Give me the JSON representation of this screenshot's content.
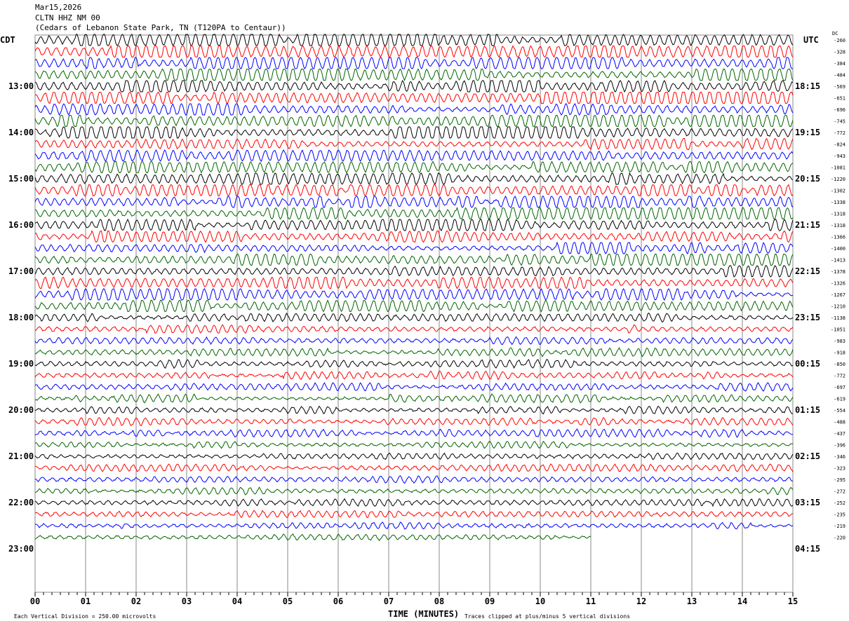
{
  "header": {
    "date": "Mar15,2026",
    "station": "CLTN HHZ NM 00",
    "location": "(Cedars of Lebanon State Park, TN (T120PA to Centaur))"
  },
  "left_tz": "CDT",
  "right_tz": "UTC",
  "dc_label": "DC",
  "footer": {
    "scale_note": "Each Vertical Division =  250.00 microvolts",
    "xlabel": "TIME (MINUTES)",
    "clip_note": "Traces clipped at plus/minus 5 vertical divisions"
  },
  "chart_data": {
    "type": "line",
    "subtype": "helicorder",
    "xlabel": "TIME (MINUTES)",
    "xlim": [
      0,
      15
    ],
    "x_ticks": [
      "00",
      "01",
      "02",
      "03",
      "04",
      "05",
      "06",
      "07",
      "08",
      "09",
      "10",
      "11",
      "12",
      "13",
      "14",
      "15"
    ],
    "left_hour_labels": [
      "13:00",
      "14:00",
      "15:00",
      "16:00",
      "17:00",
      "18:00",
      "19:00",
      "20:00",
      "21:00",
      "22:00",
      "23:00"
    ],
    "right_hour_labels": [
      "18:15",
      "19:15",
      "20:15",
      "21:15",
      "22:15",
      "23:15",
      "00:15",
      "01:15",
      "02:15",
      "03:15",
      "04:15"
    ],
    "trace_colors": [
      "#000000",
      "#ff0000",
      "#0000ff",
      "#006400"
    ],
    "dc_offsets": [
      -260,
      -328,
      -384,
      -484,
      -569,
      -651,
      -696,
      -745,
      -772,
      -824,
      -943,
      -1081,
      -1220,
      -1302,
      -1338,
      -1318,
      -1318,
      -1366,
      -1400,
      -1413,
      -1378,
      -1326,
      -1267,
      -1210,
      -1138,
      -1051,
      -983,
      -918,
      -850,
      -772,
      -697,
      -619,
      -554,
      -488,
      -437,
      -396,
      -346,
      -323,
      -295,
      -272,
      -252,
      -235,
      -219,
      -220
    ],
    "last_trace_end_minute": 11,
    "grid": true
  }
}
